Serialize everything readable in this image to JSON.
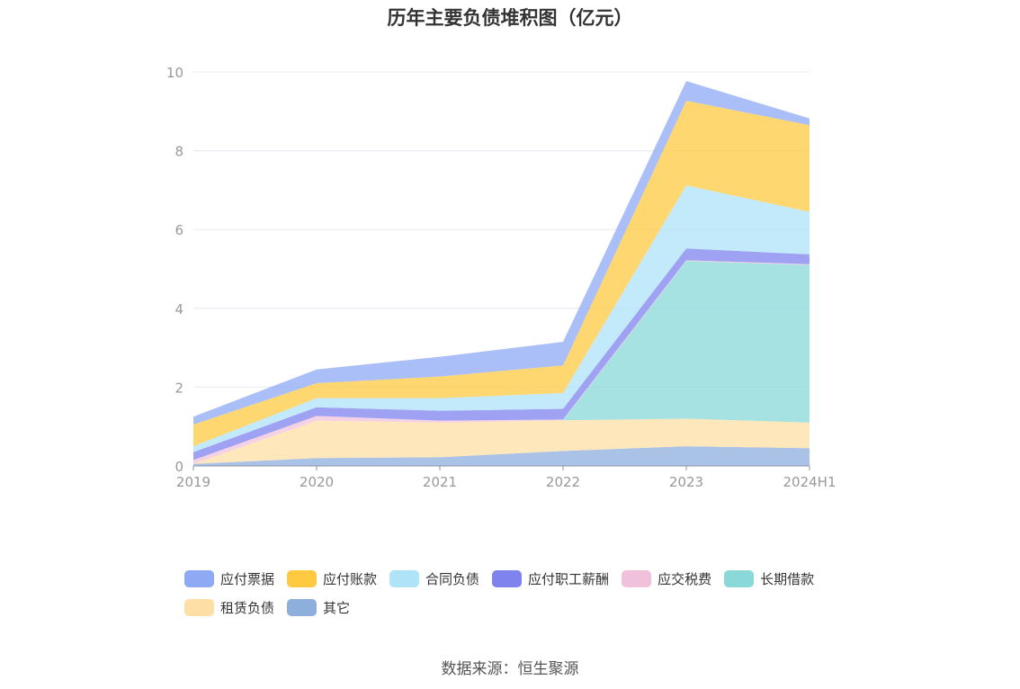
{
  "title": "历年主要负债堆积图（亿元）",
  "source": "数据来源：恒生聚源",
  "chart_data": {
    "type": "area",
    "stacked": true,
    "categories": [
      "2019",
      "2020",
      "2021",
      "2022",
      "2023",
      "2024H1"
    ],
    "ylim": [
      0,
      10
    ],
    "yticks": [
      "0",
      "2",
      "4",
      "6",
      "8",
      "10"
    ],
    "grid": true,
    "legend_position": "bottom",
    "series": [
      {
        "name": "其它",
        "color": "#8eaedc",
        "values": [
          0.05,
          0.2,
          0.22,
          0.38,
          0.5,
          0.45
        ]
      },
      {
        "name": "租赁负债",
        "color": "#ffdfa6",
        "values": [
          0.0,
          0.95,
          0.88,
          0.78,
          0.7,
          0.65
        ]
      },
      {
        "name": "长期借款",
        "color": "#8ad8d8",
        "values": [
          0.0,
          0.0,
          0.0,
          0.0,
          4.0,
          4.0
        ]
      },
      {
        "name": "应交税费",
        "color": "#f1c1dc",
        "values": [
          0.1,
          0.12,
          0.05,
          0.02,
          0.02,
          0.02
        ]
      },
      {
        "name": "应付职工薪酬",
        "color": "#7f83ee",
        "values": [
          0.2,
          0.22,
          0.25,
          0.27,
          0.3,
          0.25
        ]
      },
      {
        "name": "合同负债",
        "color": "#aee3f8",
        "values": [
          0.15,
          0.23,
          0.32,
          0.4,
          1.6,
          1.08
        ]
      },
      {
        "name": "应付账款",
        "color": "#ffc942",
        "values": [
          0.55,
          0.38,
          0.55,
          0.7,
          2.15,
          2.2
        ]
      },
      {
        "name": "应付票据",
        "color": "#8eaaf5",
        "values": [
          0.2,
          0.35,
          0.5,
          0.6,
          0.5,
          0.17
        ]
      }
    ],
    "legend_order": [
      "应付票据",
      "应付账款",
      "合同负债",
      "应付职工薪酬",
      "应交税费",
      "长期借款",
      "租赁负债",
      "其它"
    ]
  }
}
